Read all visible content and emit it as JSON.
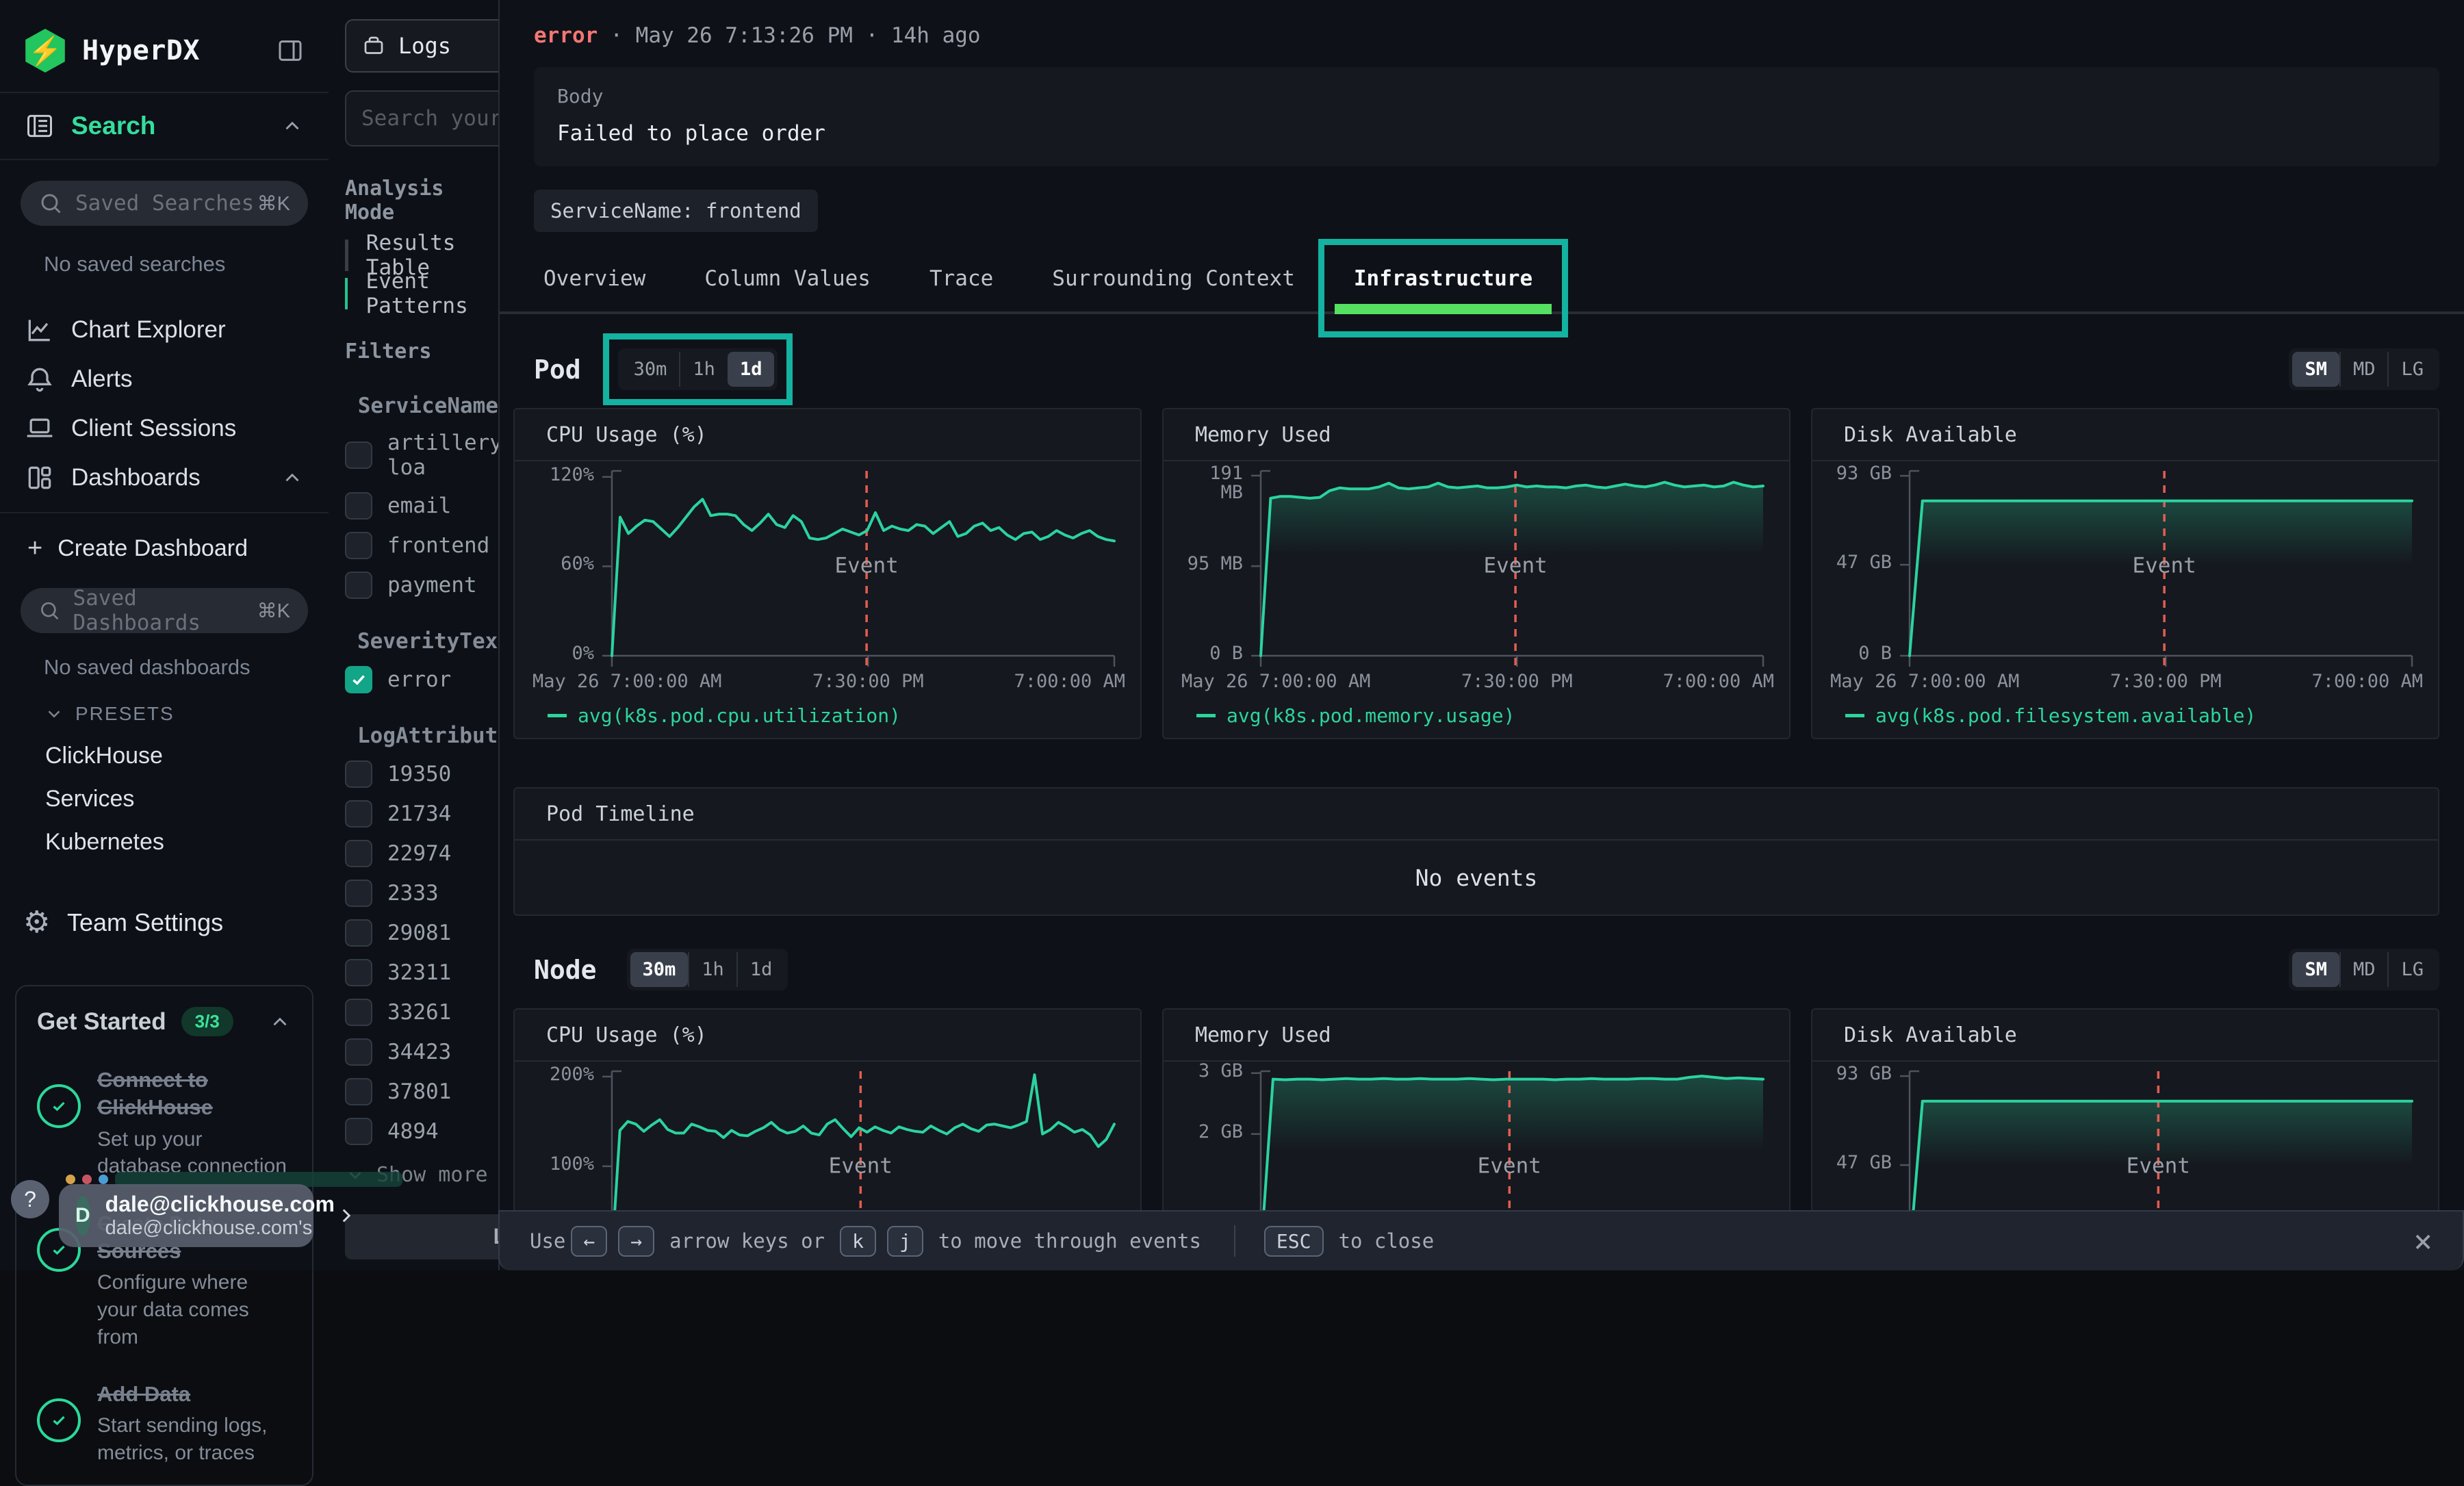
{
  "sidebar": {
    "brand": "HyperDX",
    "nav_search": "Search",
    "saved_searches_placeholder": "Saved Searches",
    "kbd_shortcut": "⌘K",
    "no_saved_searches": "No saved searches",
    "items": [
      "Chart Explorer",
      "Alerts",
      "Client Sessions",
      "Dashboards"
    ],
    "create_dashboard": "Create Dashboard",
    "saved_dashboards_placeholder": "Saved Dashboards",
    "no_saved_dashboards": "No saved dashboards",
    "presets_label": "PRESETS",
    "preset_items": [
      "ClickHouse",
      "Services",
      "Kubernetes"
    ],
    "team_settings": "Team Settings",
    "get_started": {
      "title": "Get Started",
      "badge": "3/3",
      "steps": [
        {
          "title": "Connect to ClickHouse",
          "desc": "Set up your database connection"
        },
        {
          "title": "Create Data Sources",
          "desc": "Configure where your data comes from"
        },
        {
          "title": "Add Data",
          "desc": "Start sending logs, metrics, or traces"
        }
      ]
    },
    "help": "?",
    "user": {
      "avatar": "D",
      "email": "dale@clickhouse.com",
      "sub": "dale@clickhouse.com's"
    }
  },
  "explorer": {
    "source_select": "Logs",
    "search_placeholder": "Search your ev",
    "analysis_mode_label": "Analysis Mode",
    "modes": [
      "Results Table",
      "Event Patterns"
    ],
    "filters_label": "Filters",
    "groups": [
      {
        "name": "ServiceName",
        "options": [
          "artillery-loa",
          "email",
          "frontend",
          "payment"
        ]
      },
      {
        "name": "SeverityText",
        "options": [
          "error"
        ]
      },
      {
        "name": "LogAttributes",
        "options": [
          "19350",
          "21734",
          "22974",
          "2333",
          "29081",
          "32311",
          "33261",
          "34423",
          "37801",
          "4894"
        ]
      }
    ],
    "show_more": "Show more",
    "less_filters": "Less fil"
  },
  "panel": {
    "severity": "error",
    "title_meta": "· May 26 7:13:26 PM · 14h ago",
    "body_label": "Body",
    "body_value": "Failed to place order",
    "service_chip": "ServiceName: frontend",
    "tabs": [
      "Overview",
      "Column Values",
      "Trace",
      "Surrounding Context",
      "Infrastructure"
    ],
    "active_tab": "Infrastructure",
    "pod_section": "Pod",
    "node_section": "Node",
    "range_options": [
      "30m",
      "1h",
      "1d"
    ],
    "pod_range": "1d",
    "node_range": "30m",
    "size_options": [
      "SM",
      "MD",
      "LG"
    ],
    "size_active": "SM",
    "timeline_title": "Pod Timeline",
    "timeline_empty": "No events"
  },
  "footer": {
    "use": "Use",
    "arrows": [
      "←",
      "→"
    ],
    "text1": "arrow keys or",
    "keys": [
      "k",
      "j"
    ],
    "text2": "to move through events",
    "esc": "ESC",
    "text3": "to close",
    "close": "×"
  },
  "colors": {
    "accent_green": "#2bd3a0",
    "legend_green": "#2dd49c",
    "annotation_teal": "#14b2a0",
    "tab_underline": "#55e062",
    "error_red": "#f47674",
    "event_line_red": "#e25d52",
    "checkbox_green": "#12a587"
  },
  "chart_data": [
    {
      "id": "pod-cpu",
      "type": "line",
      "area": false,
      "title": "CPU Usage (%)",
      "legend": "avg(k8s.pod.cpu.utilization)",
      "ylim": [
        0,
        124
      ],
      "yticks": [
        {
          "v": 120,
          "label": "120%"
        },
        {
          "v": 60,
          "label": "60%"
        },
        {
          "v": 0,
          "label": "0%"
        }
      ],
      "xticks": [
        "May 26 7:00:00 AM",
        "7:30:00 PM",
        "7:00:00 AM"
      ],
      "event_x": 0.507,
      "event_label": "Event",
      "values": [
        0,
        93,
        82,
        87,
        91,
        90,
        85,
        80,
        86,
        93,
        100,
        105,
        94,
        95,
        95,
        94,
        88,
        84,
        89,
        95,
        88,
        86,
        94,
        90,
        79,
        78,
        79,
        82,
        85,
        83,
        81,
        84,
        96,
        84,
        87,
        85,
        84,
        88,
        87,
        82,
        86,
        90,
        80,
        82,
        87,
        89,
        84,
        86,
        81,
        78,
        82,
        83,
        78,
        80,
        84,
        81,
        79,
        82,
        84,
        80,
        78,
        77
      ]
    },
    {
      "id": "pod-memory",
      "type": "line",
      "area": true,
      "title": "Memory Used",
      "legend": "avg(k8s.pod.memory.usage)",
      "ylim": [
        0,
        196
      ],
      "yticks": [
        {
          "v": 191,
          "label": "191\nMB"
        },
        {
          "v": 95,
          "label": "95 MB"
        },
        {
          "v": 0,
          "label": "0 B"
        }
      ],
      "xticks": [
        "May 26 7:00:00 AM",
        "7:30:00 PM",
        "7:00:00 AM"
      ],
      "event_x": 0.507,
      "event_label": "Event",
      "values": [
        0,
        167,
        169,
        169,
        168,
        167,
        168,
        175,
        178,
        177,
        177,
        177,
        179,
        183,
        178,
        177,
        178,
        179,
        183,
        179,
        178,
        179,
        180,
        178,
        178,
        179,
        181,
        179,
        180,
        179,
        179,
        178,
        180,
        181,
        179,
        178,
        180,
        182,
        180,
        179,
        181,
        184,
        181,
        179,
        180,
        181,
        179,
        180,
        184,
        181,
        179,
        180
      ]
    },
    {
      "id": "pod-disk",
      "type": "line",
      "area": true,
      "title": "Disk Available",
      "legend": "avg(k8s.pod.filesystem.available)",
      "ylim": [
        0,
        95.5
      ],
      "yticks": [
        {
          "v": 93,
          "label": "93 GB"
        },
        {
          "v": 47,
          "label": "47 GB"
        },
        {
          "v": 0,
          "label": "0 B"
        }
      ],
      "xticks": [
        "May 26 7:00:00 AM",
        "7:30:00 PM",
        "7:00:00 AM"
      ],
      "event_x": 0.507,
      "event_label": "Event",
      "values": [
        0,
        80,
        80,
        80,
        80,
        80,
        80,
        80,
        80,
        80,
        80,
        80,
        80,
        80,
        80,
        80,
        80,
        80,
        80,
        80,
        80,
        80,
        80,
        80,
        80,
        80,
        80,
        80,
        80,
        80,
        80,
        80,
        80,
        80,
        80,
        80,
        80,
        80,
        80,
        80
      ]
    },
    {
      "id": "node-cpu",
      "type": "line",
      "area": false,
      "title": "CPU Usage (%)",
      "legend": "",
      "ylim": [
        0,
        206
      ],
      "yticks": [
        {
          "v": 200,
          "label": "200%"
        },
        {
          "v": 100,
          "label": "100%"
        }
      ],
      "xticks": [],
      "event_x": 0.495,
      "event_label": "Event",
      "values": [
        0,
        140,
        150,
        147,
        139,
        146,
        152,
        141,
        137,
        137,
        147,
        144,
        140,
        139,
        132,
        140,
        135,
        134,
        139,
        143,
        149,
        141,
        137,
        139,
        145,
        137,
        135,
        147,
        152,
        142,
        133,
        143,
        138,
        144,
        140,
        137,
        144,
        141,
        139,
        138,
        145,
        140,
        136,
        143,
        147,
        142,
        139,
        146,
        147,
        145,
        143,
        146,
        150,
        202,
        136,
        141,
        149,
        144,
        138,
        141,
        135,
        122,
        130,
        147
      ]
    },
    {
      "id": "node-memory",
      "type": "line",
      "area": true,
      "title": "Memory Used",
      "legend": "",
      "ylim": [
        0,
        3.03
      ],
      "yticks": [
        {
          "v": 3,
          "label": "3 GB"
        },
        {
          "v": 2,
          "label": "2 GB"
        }
      ],
      "xticks": [],
      "event_x": 0.495,
      "event_label": "Event",
      "values": [
        0,
        2.9,
        2.89,
        2.9,
        2.9,
        2.89,
        2.9,
        2.91,
        2.9,
        2.9,
        2.91,
        2.9,
        2.9,
        2.91,
        2.9,
        2.9,
        2.9,
        2.91,
        2.9,
        2.89,
        2.9,
        2.9,
        2.9,
        2.9,
        2.89,
        2.9,
        2.9,
        2.91,
        2.9,
        2.9,
        2.9,
        2.91,
        2.91,
        2.9,
        2.9,
        2.93,
        2.95,
        2.93,
        2.91,
        2.92,
        2.91,
        2.9
      ]
    },
    {
      "id": "node-disk",
      "type": "line",
      "area": true,
      "title": "Disk Available",
      "legend": "",
      "ylim": [
        0,
        95.5
      ],
      "yticks": [
        {
          "v": 93,
          "label": "93 GB"
        },
        {
          "v": 47,
          "label": "47 GB"
        }
      ],
      "xticks": [],
      "event_x": 0.495,
      "event_label": "Event",
      "values": [
        0,
        80,
        80,
        80,
        80,
        80,
        80,
        80,
        80,
        80,
        80,
        80,
        80,
        80,
        80,
        80,
        80,
        80,
        80,
        80,
        80,
        80,
        80,
        80,
        80,
        80,
        80,
        80,
        80,
        80,
        80,
        80,
        80,
        80,
        80,
        80,
        80,
        80,
        80,
        80
      ]
    }
  ]
}
